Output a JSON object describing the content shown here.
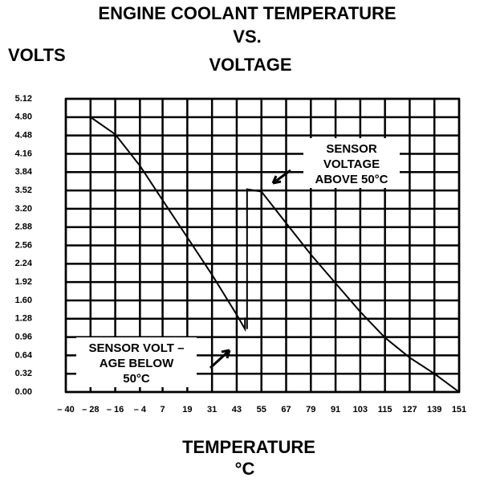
{
  "chart_data": {
    "type": "line",
    "title": [
      "ENGINE COOLANT TEMPERATURE",
      "VS.",
      "VOLTAGE"
    ],
    "y_label": "VOLTS",
    "x_label": [
      "TEMPERATURE",
      "°C"
    ],
    "annotations": [
      [
        "SENSOR",
        "VOLTAGE",
        "ABOVE 50°C"
      ],
      [
        "SENSOR VOLT –",
        "AGE BELOW",
        "50°C"
      ]
    ],
    "xlim": [
      -40,
      151
    ],
    "xticks": [
      {
        "value": -40,
        "label": "– 40"
      },
      {
        "value": -28,
        "label": "– 28"
      },
      {
        "value": -16,
        "label": "– 16"
      },
      {
        "value": -4,
        "label": "– 4"
      },
      7,
      19,
      31,
      43,
      55,
      67,
      79,
      91,
      103,
      115,
      127,
      139,
      151
    ],
    "ylim": [
      0,
      5.12
    ],
    "yticks": [
      {
        "value": 0,
        "label": "0.00"
      },
      0.32,
      0.64,
      0.96,
      1.28,
      {
        "value": 1.6,
        "label": "1.60"
      },
      1.92,
      2.24,
      2.56,
      2.88,
      {
        "value": 3.2,
        "label": "3.20"
      },
      3.52,
      3.84,
      4.16,
      4.48,
      {
        "value": 4.8,
        "label": "4.80"
      },
      5.12
    ],
    "grid": true,
    "series": [
      {
        "color": "#000000",
        "x": [
          -28,
          -28,
          -16,
          -4,
          7,
          19,
          31,
          43,
          47,
          47
        ],
        "values": [
          5.12,
          4.8,
          4.5,
          3.95,
          3.35,
          2.7,
          2.05,
          1.35,
          1.1,
          1.3
        ]
      },
      {
        "color": "#000000",
        "x": [
          48,
          48,
          55,
          67,
          79,
          91,
          103,
          115,
          127,
          139,
          151
        ],
        "values": [
          1.1,
          3.54,
          3.5,
          2.95,
          2.4,
          1.9,
          1.4,
          0.95,
          0.6,
          0.32,
          0
        ]
      }
    ]
  }
}
